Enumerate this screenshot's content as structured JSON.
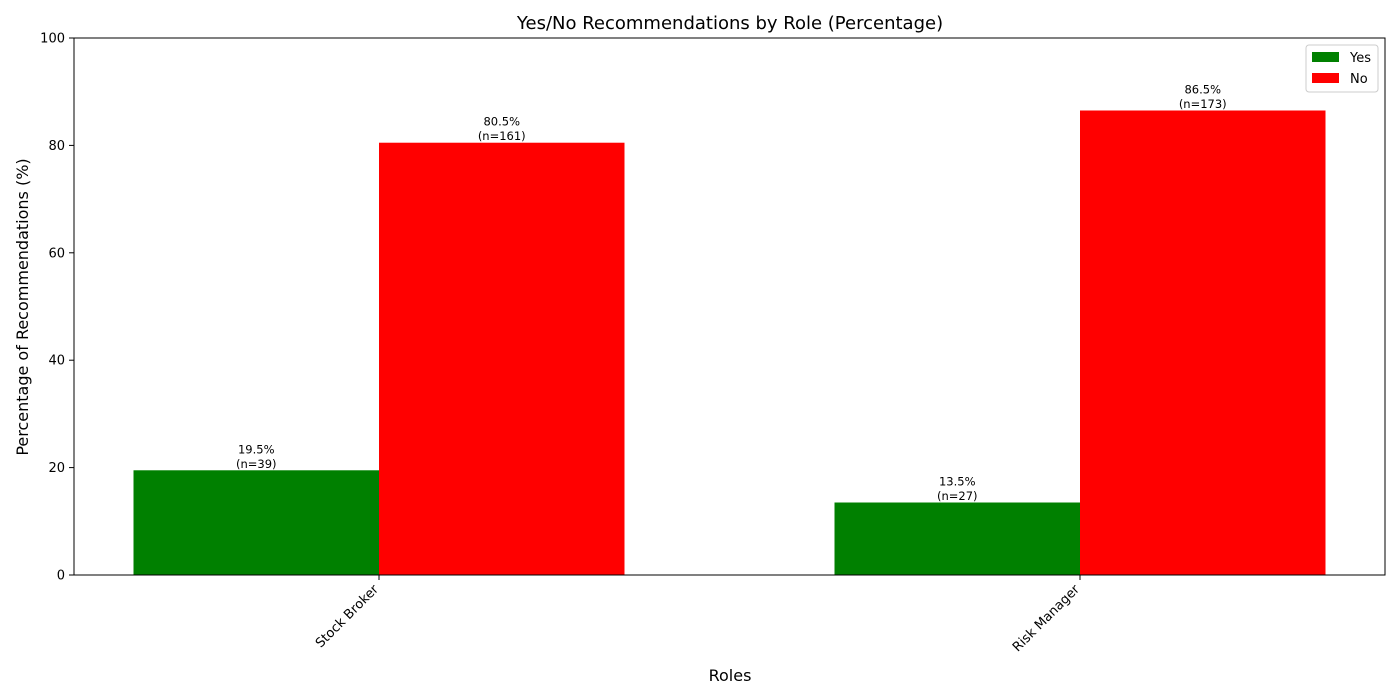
{
  "chart_data": {
    "type": "bar",
    "title": "Yes/No Recommendations by Role (Percentage)",
    "xlabel": "Roles",
    "ylabel": "Percentage of Recommendations (%)",
    "ylim": [
      0,
      100
    ],
    "yticks": [
      "0",
      "20",
      "40",
      "60",
      "80",
      "100"
    ],
    "categories": [
      "Stock Broker",
      "Risk Manager"
    ],
    "series": [
      {
        "name": "Yes",
        "color": "#008000",
        "values": [
          19.5,
          13.5
        ],
        "labels": [
          [
            "19.5%",
            "(n=39)"
          ],
          [
            "13.5%",
            "(n=27)"
          ]
        ]
      },
      {
        "name": "No",
        "color": "#ff0000",
        "values": [
          80.5,
          86.5
        ],
        "labels": [
          [
            "80.5%",
            "(n=161)"
          ],
          [
            "86.5%",
            "(n=173)"
          ]
        ]
      }
    ],
    "legend_position": "top-right",
    "grid": false
  }
}
